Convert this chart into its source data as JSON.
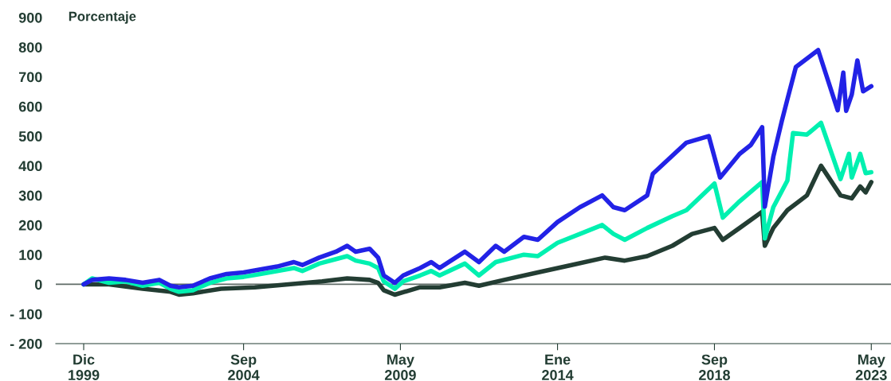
{
  "chart_data": {
    "type": "line",
    "ylabel": "Porcentaje",
    "ylim": [
      -200,
      900
    ],
    "yticks": [
      -200,
      -100,
      0,
      100,
      200,
      300,
      400,
      500,
      600,
      700,
      800,
      900
    ],
    "xlim": [
      "1999-02",
      "2023-12"
    ],
    "xticks": [
      {
        "value": "1999-12",
        "label": "Dic\n1999"
      },
      {
        "value": "2004-09",
        "label": "Sep\n2004"
      },
      {
        "value": "2009-05",
        "label": "May\n2009"
      },
      {
        "value": "2014-01",
        "label": "Ene\n2014"
      },
      {
        "value": "2018-09",
        "label": "Sep\n2018"
      },
      {
        "value": "2023-05",
        "label": "May\n2023"
      }
    ],
    "grid": false,
    "legend": false,
    "marker": "none",
    "line_style": "solid",
    "ref_lines": [
      {
        "axis": "y",
        "value": 0,
        "color": "#5f6b66"
      }
    ],
    "series": [
      {
        "color": "#233d33",
        "x": [
          "1999-12",
          "2000-09",
          "2001-09",
          "2002-07",
          "2002-10",
          "2003-03",
          "2004-01",
          "2005-01",
          "2006-01",
          "2007-01",
          "2007-10",
          "2008-06",
          "2008-09",
          "2008-11",
          "2009-03",
          "2009-12",
          "2010-07",
          "2011-04",
          "2011-09",
          "2012-06",
          "2013-06",
          "2014-06",
          "2015-06",
          "2016-01",
          "2016-09",
          "2017-06",
          "2018-01",
          "2018-09",
          "2018-12",
          "2019-06",
          "2020-02",
          "2020-03",
          "2020-06",
          "2020-11",
          "2021-06",
          "2021-11",
          "2022-06",
          "2022-10",
          "2023-01",
          "2023-03",
          "2023-05"
        ],
        "values": [
          0,
          0,
          -15,
          -25,
          -35,
          -30,
          -15,
          -10,
          0,
          10,
          20,
          15,
          5,
          -20,
          -35,
          -10,
          -10,
          5,
          -5,
          15,
          40,
          65,
          90,
          80,
          95,
          130,
          170,
          190,
          150,
          190,
          245,
          130,
          190,
          250,
          300,
          400,
          300,
          290,
          330,
          310,
          345
        ]
      },
      {
        "color": "#00f0b0",
        "x": [
          "1999-12",
          "2000-03",
          "2000-09",
          "2001-03",
          "2001-09",
          "2002-03",
          "2002-07",
          "2002-10",
          "2003-03",
          "2003-09",
          "2004-03",
          "2004-09",
          "2005-03",
          "2005-09",
          "2006-03",
          "2006-06",
          "2006-12",
          "2007-06",
          "2007-10",
          "2008-01",
          "2008-06",
          "2008-09",
          "2008-11",
          "2009-03",
          "2009-06",
          "2009-12",
          "2010-04",
          "2010-07",
          "2011-04",
          "2011-09",
          "2012-03",
          "2013-01",
          "2013-06",
          "2014-01",
          "2014-09",
          "2015-05",
          "2015-09",
          "2016-01",
          "2016-09",
          "2017-06",
          "2017-11",
          "2018-09",
          "2018-12",
          "2019-06",
          "2020-02",
          "2020-03",
          "2020-06",
          "2020-11",
          "2021-01",
          "2021-06",
          "2021-11",
          "2022-06",
          "2022-09",
          "2022-10",
          "2023-01",
          "2023-03",
          "2023-05"
        ],
        "values": [
          0,
          20,
          5,
          10,
          -5,
          5,
          -15,
          -25,
          -20,
          5,
          20,
          25,
          35,
          45,
          55,
          45,
          70,
          85,
          95,
          80,
          70,
          55,
          10,
          -15,
          10,
          30,
          45,
          30,
          70,
          30,
          75,
          100,
          95,
          140,
          170,
          200,
          170,
          150,
          190,
          230,
          250,
          340,
          225,
          280,
          345,
          155,
          260,
          350,
          510,
          505,
          545,
          355,
          440,
          360,
          440,
          375,
          378
        ]
      },
      {
        "color": "#2222e6",
        "x": [
          "1999-12",
          "2000-03",
          "2000-09",
          "2001-03",
          "2001-09",
          "2002-03",
          "2002-07",
          "2002-10",
          "2003-03",
          "2003-09",
          "2004-03",
          "2004-09",
          "2005-03",
          "2005-09",
          "2006-03",
          "2006-06",
          "2006-12",
          "2007-06",
          "2007-10",
          "2008-01",
          "2008-06",
          "2008-09",
          "2008-11",
          "2009-03",
          "2009-06",
          "2009-12",
          "2010-04",
          "2010-07",
          "2011-04",
          "2011-09",
          "2012-03",
          "2012-06",
          "2013-01",
          "2013-06",
          "2014-01",
          "2014-09",
          "2015-05",
          "2015-09",
          "2016-01",
          "2016-09",
          "2016-11",
          "2017-11",
          "2018-07",
          "2018-11",
          "2019-06",
          "2019-10",
          "2020-02",
          "2020-03",
          "2020-06",
          "2020-09",
          "2020-11",
          "2021-02",
          "2021-10",
          "2022-05",
          "2022-07",
          "2022-08",
          "2022-10",
          "2022-12",
          "2023-02",
          "2023-05"
        ],
        "values": [
          0,
          15,
          20,
          15,
          5,
          15,
          -5,
          -10,
          -5,
          20,
          35,
          40,
          50,
          60,
          75,
          65,
          90,
          110,
          130,
          110,
          120,
          90,
          30,
          5,
          30,
          55,
          75,
          55,
          110,
          75,
          130,
          110,
          160,
          150,
          210,
          260,
          300,
          260,
          250,
          300,
          373,
          478,
          500,
          360,
          440,
          470,
          530,
          262,
          430,
          550,
          624,
          733,
          790,
          587,
          714,
          585,
          640,
          755,
          651,
          668
        ]
      }
    ]
  }
}
